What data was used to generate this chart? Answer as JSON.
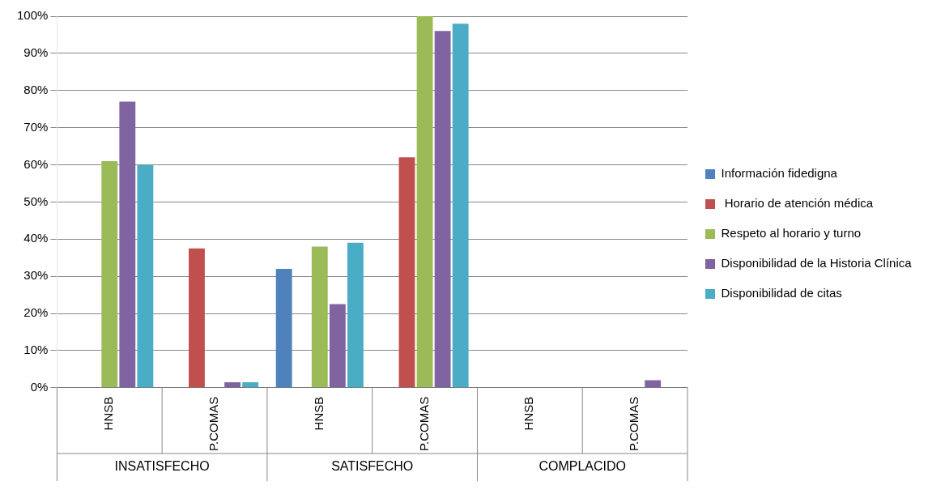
{
  "chart_data": {
    "type": "bar",
    "categories": [
      "HNSB",
      "P.COMAS",
      "HNSB",
      "P.COMAS",
      "HNSB",
      "P.COMAS"
    ],
    "series": [
      {
        "name": "Información fidedigna",
        "color": "#4f81bd",
        "values": [
          0,
          0,
          32,
          0,
          0,
          0
        ]
      },
      {
        "name": " Horario de atención médica",
        "color": "#c0504d",
        "values": [
          0,
          37.5,
          0,
          62,
          0,
          0
        ]
      },
      {
        "name": "Respeto al horario y turno",
        "color": "#9bbb59",
        "values": [
          61,
          0,
          38,
          100,
          0,
          0
        ]
      },
      {
        "name": "Disponibilidad de la Historia Clínica",
        "color": "#8064a2",
        "values": [
          77,
          1.5,
          22.5,
          96,
          0,
          2
        ]
      },
      {
        "name": "Disponibilidad de citas",
        "color": "#4bacc6",
        "values": [
          60,
          1.5,
          39,
          98,
          0,
          0
        ]
      }
    ],
    "ylim": [
      0,
      100
    ],
    "yticks": [
      {
        "value": 0,
        "label": "0%"
      },
      {
        "value": 10,
        "label": "10%"
      },
      {
        "value": 20,
        "label": "20%"
      },
      {
        "value": 30,
        "label": "30%"
      },
      {
        "value": 40,
        "label": "40%"
      },
      {
        "value": 50,
        "label": "50%"
      },
      {
        "value": 60,
        "label": "60%"
      },
      {
        "value": 70,
        "label": "70%"
      },
      {
        "value": 80,
        "label": "80%"
      },
      {
        "value": 90,
        "label": "90%"
      },
      {
        "value": 100,
        "label": "100%"
      }
    ],
    "annotations": [
      "INSATISFECHO",
      "SATISFECHO",
      "COMPLACIDO"
    ],
    "grid": "y",
    "legend": "right"
  }
}
